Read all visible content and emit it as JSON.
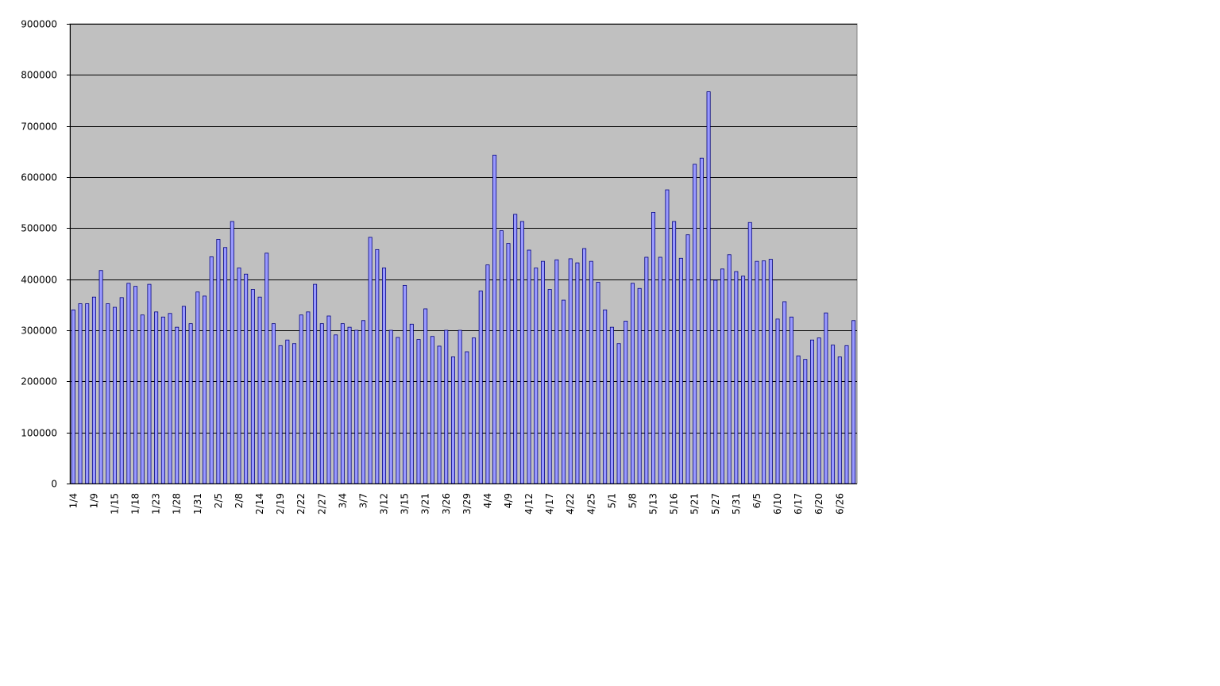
{
  "chart_data": {
    "type": "bar",
    "title": "",
    "xlabel": "",
    "ylabel": "",
    "ylim": [
      0,
      900000
    ],
    "yticks": [
      "0",
      "100000",
      "200000",
      "300000",
      "400000",
      "500000",
      "600000",
      "700000",
      "800000",
      "900000"
    ],
    "grid": true,
    "colors": {
      "bar_fill": "#9999ff",
      "bar_stroke": "#000080",
      "plot_bg": "#c0c0c0",
      "gridline": "#000000"
    },
    "x_tick_labels": [
      {
        "index": 0,
        "label": "1/4"
      },
      {
        "index": 3,
        "label": "1/9"
      },
      {
        "index": 6,
        "label": "1/15"
      },
      {
        "index": 9,
        "label": "1/18"
      },
      {
        "index": 12,
        "label": "1/23"
      },
      {
        "index": 15,
        "label": "1/28"
      },
      {
        "index": 18,
        "label": "1/31"
      },
      {
        "index": 21,
        "label": "2/5"
      },
      {
        "index": 24,
        "label": "2/8"
      },
      {
        "index": 27,
        "label": "2/14"
      },
      {
        "index": 30,
        "label": "2/19"
      },
      {
        "index": 33,
        "label": "2/22"
      },
      {
        "index": 36,
        "label": "2/27"
      },
      {
        "index": 39,
        "label": "3/4"
      },
      {
        "index": 42,
        "label": "3/7"
      },
      {
        "index": 45,
        "label": "3/12"
      },
      {
        "index": 48,
        "label": "3/15"
      },
      {
        "index": 51,
        "label": "3/21"
      },
      {
        "index": 54,
        "label": "3/26"
      },
      {
        "index": 57,
        "label": "3/29"
      },
      {
        "index": 60,
        "label": "4/4"
      },
      {
        "index": 63,
        "label": "4/9"
      },
      {
        "index": 66,
        "label": "4/12"
      },
      {
        "index": 69,
        "label": "4/17"
      },
      {
        "index": 72,
        "label": "4/22"
      },
      {
        "index": 75,
        "label": "4/25"
      },
      {
        "index": 78,
        "label": "5/1"
      },
      {
        "index": 81,
        "label": "5/8"
      },
      {
        "index": 84,
        "label": "5/13"
      },
      {
        "index": 87,
        "label": "5/16"
      },
      {
        "index": 90,
        "label": "5/21"
      },
      {
        "index": 93,
        "label": "5/27"
      },
      {
        "index": 96,
        "label": "5/31"
      },
      {
        "index": 99,
        "label": "6/5"
      },
      {
        "index": 102,
        "label": "6/10"
      },
      {
        "index": 105,
        "label": "6/17"
      },
      {
        "index": 108,
        "label": "6/20"
      },
      {
        "index": 111,
        "label": "6/26"
      }
    ],
    "values": [
      340000,
      352000,
      352000,
      365000,
      417000,
      352000,
      345000,
      364000,
      392000,
      386000,
      330000,
      390000,
      336000,
      326000,
      333000,
      306000,
      347000,
      313000,
      375000,
      367000,
      444000,
      478000,
      462000,
      513000,
      422000,
      410000,
      380000,
      365000,
      451000,
      313000,
      270000,
      281000,
      274000,
      330000,
      336000,
      390000,
      313000,
      328000,
      291000,
      313000,
      306000,
      300000,
      319000,
      482000,
      458000,
      422000,
      300000,
      286000,
      388000,
      312000,
      282000,
      342000,
      288000,
      269000,
      300000,
      248000,
      300000,
      258000,
      285000,
      377000,
      428000,
      643000,
      495000,
      470000,
      527000,
      513000,
      457000,
      422000,
      435000,
      380000,
      438000,
      359000,
      440000,
      432000,
      460000,
      435000,
      394000,
      340000,
      306000,
      274000,
      318000,
      392000,
      382000,
      443000,
      531000,
      443000,
      575000,
      513000,
      441000,
      487000,
      625000,
      637000,
      767000,
      398000,
      420000,
      448000,
      415000,
      406000,
      511000,
      435000,
      436000,
      439000,
      322000,
      356000,
      326000,
      250000,
      243000,
      281000,
      285000,
      334000,
      271000,
      248000,
      270000,
      319000
    ]
  }
}
